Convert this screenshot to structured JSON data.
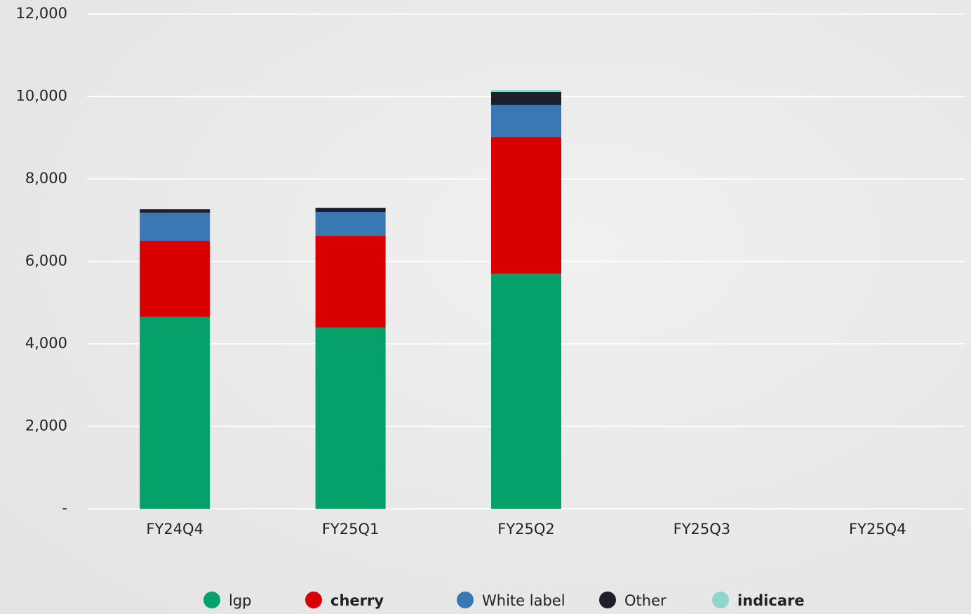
{
  "chart_data": {
    "type": "bar",
    "stacked": true,
    "categories": [
      "FY24Q4",
      "FY25Q1",
      "FY25Q2",
      "FY25Q3",
      "FY25Q4"
    ],
    "series": [
      {
        "name": "lgp",
        "color": "#06a06b",
        "values": [
          4650,
          4400,
          5700,
          null,
          null
        ]
      },
      {
        "name": "cherry",
        "color": "#d80000",
        "values": [
          1850,
          2220,
          3320,
          null,
          null
        ]
      },
      {
        "name": "White label",
        "color": "#3a78b3",
        "values": [
          680,
          580,
          770,
          null,
          null
        ]
      },
      {
        "name": "Other",
        "color": "#1e1e2c",
        "values": [
          85,
          100,
          320,
          null,
          null
        ]
      },
      {
        "name": "indicare",
        "color": "#8fd6cc",
        "values": [
          0,
          0,
          50,
          null,
          null
        ]
      }
    ],
    "ylim": [
      0,
      12000
    ],
    "yticks": [
      {
        "value": 0,
        "label": "-"
      },
      {
        "value": 2000,
        "label": "2,000"
      },
      {
        "value": 4000,
        "label": "4,000"
      },
      {
        "value": 6000,
        "label": "6,000"
      },
      {
        "value": 8000,
        "label": "8,000"
      },
      {
        "value": 10000,
        "label": "10,000"
      },
      {
        "value": 12000,
        "label": "12,000"
      }
    ],
    "grid": true,
    "legend": "bottom"
  }
}
